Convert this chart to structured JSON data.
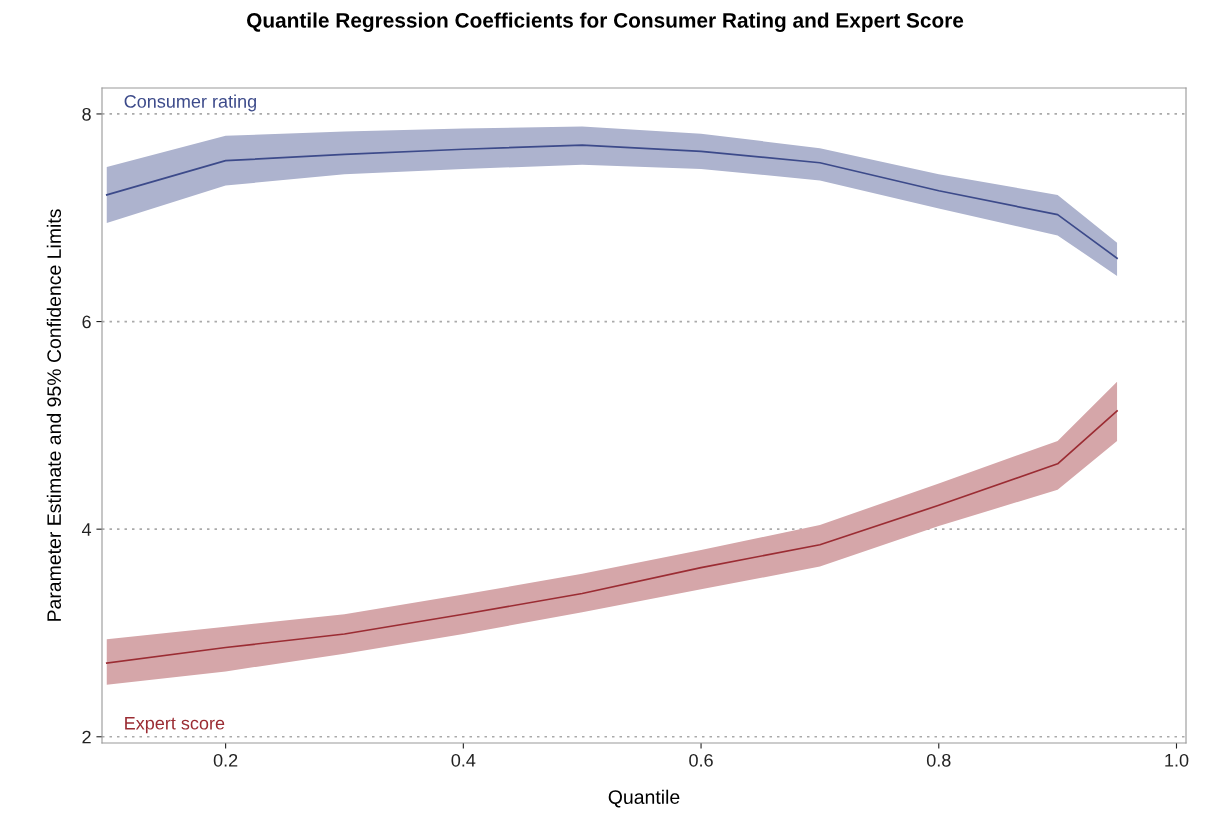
{
  "chart_data": {
    "type": "line",
    "title": "Quantile Regression Coefficients for Consumer Rating and Expert Score",
    "xlabel": "Quantile",
    "ylabel": "Parameter Estimate and 95% Confidence Limits",
    "x": [
      0.1,
      0.2,
      0.3,
      0.4,
      0.5,
      0.6,
      0.7,
      0.8,
      0.9,
      0.95
    ],
    "series": [
      {
        "name": "Consumer rating",
        "color": "#3c4a8a",
        "values": [
          7.22,
          7.55,
          7.61,
          7.66,
          7.7,
          7.64,
          7.53,
          7.26,
          7.03,
          6.61
        ],
        "lower": [
          6.95,
          7.31,
          7.42,
          7.47,
          7.51,
          7.47,
          7.36,
          7.09,
          6.83,
          6.44
        ],
        "upper": [
          7.49,
          7.79,
          7.83,
          7.86,
          7.88,
          7.81,
          7.67,
          7.42,
          7.22,
          6.76
        ]
      },
      {
        "name": "Expert score",
        "color": "#9b2c33",
        "values": [
          2.71,
          2.86,
          2.99,
          3.18,
          3.38,
          3.63,
          3.85,
          4.23,
          4.63,
          5.14
        ],
        "lower": [
          2.5,
          2.63,
          2.8,
          2.99,
          3.2,
          3.42,
          3.64,
          4.03,
          4.38,
          4.85
        ],
        "upper": [
          2.94,
          3.06,
          3.18,
          3.37,
          3.57,
          3.8,
          4.04,
          4.44,
          4.85,
          5.42
        ]
      }
    ],
    "xlim": [
      0.096,
      1.008
    ],
    "ylim": [
      1.94,
      8.25
    ],
    "xticks": [
      {
        "value": 0.2,
        "label": "0.2"
      },
      {
        "value": 0.4,
        "label": "0.4"
      },
      {
        "value": 0.6,
        "label": "0.6"
      },
      {
        "value": 0.8,
        "label": "0.8"
      },
      {
        "value": 1.0,
        "label": "1.0"
      }
    ],
    "yticks": [
      2,
      4,
      6,
      8
    ],
    "grid": "y",
    "legend": false,
    "marker": "none",
    "line_style": "solid"
  }
}
